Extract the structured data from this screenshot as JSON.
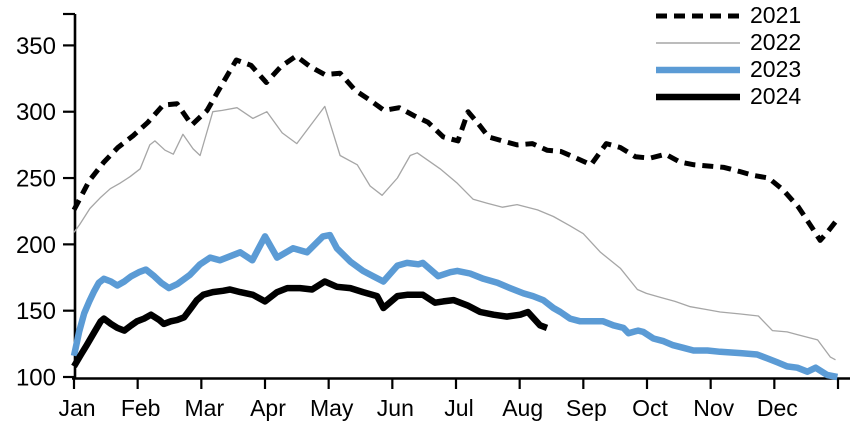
{
  "chart_data": {
    "type": "line",
    "title": "",
    "x_axis": {
      "labels": [
        "Jan",
        "Feb",
        "Mar",
        "Apr",
        "May",
        "Jun",
        "Jul",
        "Aug",
        "Sep",
        "Oct",
        "Nov",
        "Dec"
      ],
      "range_months": [
        0,
        12
      ]
    },
    "y_axis": {
      "min": 100,
      "max": 350,
      "ticks": [
        100,
        150,
        200,
        250,
        300,
        350
      ]
    },
    "legend": {
      "position": "top-right",
      "entries": [
        "2021",
        "2022",
        "2023",
        "2024"
      ]
    },
    "grid": "off",
    "series": [
      {
        "name": "2021",
        "color": "#000000",
        "style": "dashed",
        "width": 5,
        "points": [
          [
            0,
            226
          ],
          [
            0.24,
            248
          ],
          [
            0.47,
            262
          ],
          [
            0.69,
            273
          ],
          [
            0.93,
            282
          ],
          [
            1.16,
            292
          ],
          [
            1.4,
            305
          ],
          [
            1.62,
            306
          ],
          [
            1.85,
            290
          ],
          [
            2.09,
            301
          ],
          [
            2.33,
            321
          ],
          [
            2.55,
            339
          ],
          [
            2.78,
            335
          ],
          [
            3.02,
            322
          ],
          [
            3.25,
            334
          ],
          [
            3.49,
            342
          ],
          [
            3.71,
            334
          ],
          [
            3.94,
            328
          ],
          [
            4.18,
            329
          ],
          [
            4.42,
            316
          ],
          [
            4.64,
            309
          ],
          [
            4.87,
            301
          ],
          [
            5.11,
            303
          ],
          [
            5.34,
            297
          ],
          [
            5.56,
            292
          ],
          [
            5.8,
            281
          ],
          [
            6.03,
            278
          ],
          [
            6.19,
            300
          ],
          [
            6.35,
            291
          ],
          [
            6.51,
            281
          ],
          [
            6.73,
            278
          ],
          [
            6.96,
            275
          ],
          [
            7.2,
            276
          ],
          [
            7.43,
            271
          ],
          [
            7.65,
            270
          ],
          [
            7.89,
            265
          ],
          [
            8.12,
            260
          ],
          [
            8.36,
            276
          ],
          [
            8.58,
            273
          ],
          [
            8.82,
            266
          ],
          [
            9.05,
            265
          ],
          [
            9.29,
            268
          ],
          [
            9.52,
            262
          ],
          [
            9.74,
            260
          ],
          [
            9.98,
            259
          ],
          [
            10.21,
            258
          ],
          [
            10.45,
            255
          ],
          [
            10.67,
            252
          ],
          [
            10.91,
            250
          ],
          [
            11.14,
            241
          ],
          [
            11.38,
            228
          ],
          [
            11.6,
            212
          ],
          [
            11.72,
            203
          ],
          [
            11.83,
            209
          ],
          [
            11.96,
            217
          ]
        ]
      },
      {
        "name": "2022",
        "color": "#a6a6a6",
        "style": "solid",
        "width": 1.3,
        "points": [
          [
            0,
            209
          ],
          [
            0.09,
            215
          ],
          [
            0.25,
            227
          ],
          [
            0.41,
            235
          ],
          [
            0.57,
            242
          ],
          [
            0.72,
            246
          ],
          [
            0.88,
            251
          ],
          [
            1.04,
            257
          ],
          [
            1.19,
            275
          ],
          [
            1.27,
            278
          ],
          [
            1.43,
            271
          ],
          [
            1.56,
            268
          ],
          [
            1.71,
            283
          ],
          [
            1.87,
            272
          ],
          [
            1.98,
            267
          ],
          [
            2.18,
            300
          ],
          [
            2.33,
            301
          ],
          [
            2.56,
            303
          ],
          [
            2.81,
            295
          ],
          [
            3.03,
            300
          ],
          [
            3.27,
            284
          ],
          [
            3.5,
            276
          ],
          [
            3.72,
            290
          ],
          [
            3.94,
            304
          ],
          [
            4.18,
            267
          ],
          [
            4.45,
            260
          ],
          [
            4.65,
            244
          ],
          [
            4.84,
            237
          ],
          [
            5.08,
            250
          ],
          [
            5.28,
            267
          ],
          [
            5.39,
            269
          ],
          [
            5.75,
            257
          ],
          [
            6.02,
            246
          ],
          [
            6.27,
            234
          ],
          [
            6.49,
            231
          ],
          [
            6.73,
            228
          ],
          [
            6.96,
            230
          ],
          [
            7.28,
            226
          ],
          [
            7.53,
            221
          ],
          [
            7.79,
            214
          ],
          [
            8,
            208
          ],
          [
            8.27,
            194
          ],
          [
            8.58,
            182
          ],
          [
            8.85,
            166
          ],
          [
            8.99,
            163
          ],
          [
            9.21,
            160
          ],
          [
            9.44,
            157
          ],
          [
            9.68,
            153
          ],
          [
            9.92,
            151
          ],
          [
            10.15,
            149
          ],
          [
            10.47,
            147.5
          ],
          [
            10.75,
            146
          ],
          [
            10.97,
            135
          ],
          [
            11.2,
            134
          ],
          [
            11.36,
            132
          ],
          [
            11.52,
            130
          ],
          [
            11.68,
            128
          ],
          [
            11.88,
            115
          ],
          [
            11.96,
            113
          ]
        ]
      },
      {
        "name": "2023",
        "color": "#5b9bd5",
        "style": "solid",
        "width": 6.5,
        "points": [
          [
            0,
            116
          ],
          [
            0.08,
            134
          ],
          [
            0.16,
            148
          ],
          [
            0.24,
            157
          ],
          [
            0.31,
            164
          ],
          [
            0.39,
            171
          ],
          [
            0.47,
            174
          ],
          [
            0.58,
            172
          ],
          [
            0.68,
            169
          ],
          [
            0.79,
            172
          ],
          [
            0.9,
            176
          ],
          [
            1.02,
            179
          ],
          [
            1.13,
            181
          ],
          [
            1.26,
            176
          ],
          [
            1.37,
            171
          ],
          [
            1.49,
            167
          ],
          [
            1.62,
            170
          ],
          [
            1.82,
            177
          ],
          [
            1.98,
            185
          ],
          [
            2.14,
            190
          ],
          [
            2.29,
            188
          ],
          [
            2.45,
            191
          ],
          [
            2.61,
            194
          ],
          [
            2.8,
            188
          ],
          [
            3,
            206
          ],
          [
            3.19,
            190
          ],
          [
            3.44,
            197
          ],
          [
            3.66,
            194
          ],
          [
            3.91,
            206
          ],
          [
            4.02,
            207
          ],
          [
            4.13,
            197
          ],
          [
            4.34,
            187
          ],
          [
            4.54,
            180
          ],
          [
            4.7,
            176
          ],
          [
            4.86,
            172
          ],
          [
            5.08,
            184
          ],
          [
            5.23,
            186
          ],
          [
            5.41,
            185
          ],
          [
            5.48,
            186
          ],
          [
            5.72,
            176
          ],
          [
            5.91,
            179
          ],
          [
            6.02,
            180
          ],
          [
            6.22,
            178
          ],
          [
            6.43,
            174
          ],
          [
            6.65,
            171
          ],
          [
            6.85,
            167
          ],
          [
            7.06,
            163
          ],
          [
            7.21,
            161
          ],
          [
            7.37,
            158
          ],
          [
            7.53,
            152
          ],
          [
            7.64,
            149
          ],
          [
            7.79,
            144
          ],
          [
            7.95,
            142
          ],
          [
            8.11,
            142
          ],
          [
            8.31,
            142
          ],
          [
            8.47,
            139
          ],
          [
            8.63,
            137
          ],
          [
            8.71,
            133
          ],
          [
            8.86,
            135
          ],
          [
            8.94,
            134
          ],
          [
            9.1,
            129
          ],
          [
            9.26,
            127
          ],
          [
            9.41,
            124
          ],
          [
            9.57,
            122
          ],
          [
            9.73,
            120
          ],
          [
            9.95,
            120
          ],
          [
            10.15,
            119
          ],
          [
            10.47,
            118
          ],
          [
            10.73,
            117
          ],
          [
            10.89,
            114
          ],
          [
            11.05,
            111
          ],
          [
            11.2,
            108
          ],
          [
            11.36,
            107
          ],
          [
            11.52,
            104
          ],
          [
            11.65,
            107
          ],
          [
            11.83,
            101.5
          ],
          [
            11.99,
            100
          ]
        ]
      },
      {
        "name": "2024",
        "color": "#000000",
        "style": "solid",
        "width": 6.5,
        "points": [
          [
            0,
            108
          ],
          [
            0.11,
            117
          ],
          [
            0.2,
            124
          ],
          [
            0.31,
            133
          ],
          [
            0.42,
            142
          ],
          [
            0.47,
            144
          ],
          [
            0.58,
            140
          ],
          [
            0.68,
            137
          ],
          [
            0.79,
            135
          ],
          [
            0.9,
            139
          ],
          [
            0.99,
            142
          ],
          [
            1.1,
            144
          ],
          [
            1.21,
            147
          ],
          [
            1.34,
            143
          ],
          [
            1.41,
            140
          ],
          [
            1.52,
            142
          ],
          [
            1.62,
            143
          ],
          [
            1.73,
            145
          ],
          [
            1.84,
            152
          ],
          [
            1.93,
            158
          ],
          [
            2.03,
            162
          ],
          [
            2.18,
            164
          ],
          [
            2.34,
            165
          ],
          [
            2.45,
            166
          ],
          [
            2.61,
            164
          ],
          [
            2.81,
            162
          ],
          [
            3,
            157
          ],
          [
            3.19,
            164
          ],
          [
            3.35,
            167
          ],
          [
            3.55,
            167
          ],
          [
            3.74,
            166
          ],
          [
            3.94,
            172
          ],
          [
            4.13,
            168
          ],
          [
            4.34,
            167
          ],
          [
            4.54,
            164
          ],
          [
            4.76,
            161
          ],
          [
            4.86,
            152
          ],
          [
            5.08,
            161
          ],
          [
            5.23,
            162
          ],
          [
            5.48,
            162
          ],
          [
            5.67,
            156
          ],
          [
            5.8,
            157
          ],
          [
            5.96,
            158
          ],
          [
            6.18,
            154
          ],
          [
            6.38,
            149
          ],
          [
            6.59,
            147
          ],
          [
            6.8,
            145.5
          ],
          [
            7.01,
            147
          ],
          [
            7.13,
            149
          ],
          [
            7.32,
            139
          ],
          [
            7.43,
            137
          ]
        ]
      }
    ]
  }
}
